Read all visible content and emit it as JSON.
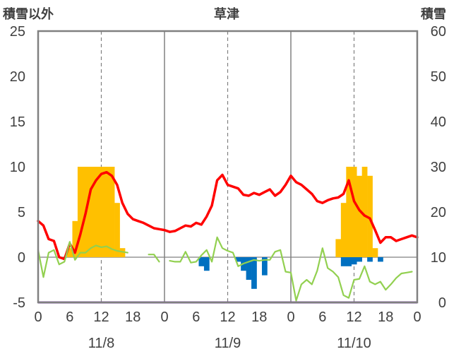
{
  "chart_data": {
    "type": "bar+line",
    "title": "草津",
    "left_axis_label": "積雪以外",
    "right_axis_label": "積雪",
    "left_ylim": [
      -5,
      25
    ],
    "left_ticks": [
      "-5",
      "0",
      "5",
      "10",
      "15",
      "20",
      "25"
    ],
    "right_ylim": [
      0,
      60
    ],
    "right_ticks": [
      "0",
      "10",
      "20",
      "30",
      "40",
      "50",
      "60"
    ],
    "x_range_hours": [
      0,
      72
    ],
    "x_tick_labels": [
      "0",
      "6",
      "12",
      "18",
      "0",
      "6",
      "12",
      "18",
      "0",
      "6",
      "12",
      "18",
      "0"
    ],
    "day_labels": [
      "11/8",
      "11/9",
      "11/10"
    ],
    "grid": "vertical dashed at 12h, solid at day boundaries",
    "colors": {
      "snowfall": "#FFC000",
      "precip": "#0070C0",
      "temperature": "#FF0000",
      "wind": "#92D050",
      "baseline": "#7030A0",
      "frame": "#808080"
    },
    "series": [
      {
        "kind": "bar",
        "axis": "left",
        "color_key": "snowfall",
        "values": [
          [
            6,
            1.0
          ],
          [
            7,
            4.0
          ],
          [
            8,
            10.0
          ],
          [
            9,
            10.0
          ],
          [
            10,
            10.0
          ],
          [
            11,
            10.0
          ],
          [
            12,
            10.0
          ],
          [
            13,
            10.0
          ],
          [
            14,
            10.0
          ],
          [
            15,
            6.0
          ],
          [
            16,
            1.0
          ],
          [
            57,
            2.0
          ],
          [
            58,
            6.0
          ],
          [
            59,
            10.0
          ],
          [
            60,
            10.0
          ],
          [
            61,
            9.0
          ],
          [
            62,
            10.0
          ],
          [
            63,
            9.0
          ],
          [
            64,
            1.0
          ]
        ]
      },
      {
        "kind": "bar",
        "axis": "left",
        "color_key": "precip",
        "values": [
          [
            31,
            -1.0
          ],
          [
            32,
            -1.5
          ],
          [
            38,
            -0.5
          ],
          [
            39,
            -1.5
          ],
          [
            40,
            -2.5
          ],
          [
            41,
            -3.5
          ],
          [
            43,
            -2.0
          ],
          [
            58,
            -1.0
          ],
          [
            59,
            -1.0
          ],
          [
            60,
            -0.8
          ],
          [
            61,
            -0.5
          ],
          [
            63,
            -0.5
          ],
          [
            65,
            -0.5
          ]
        ]
      },
      {
        "kind": "line",
        "axis": "left",
        "color_key": "temperature",
        "segments": [
          [
            [
              0,
              4.0
            ],
            [
              1,
              3.5
            ],
            [
              2,
              2.0
            ],
            [
              3,
              1.8
            ],
            [
              4,
              0.0
            ],
            [
              5,
              -0.2
            ],
            [
              6,
              1.5
            ],
            [
              7,
              0.5
            ],
            [
              8,
              2.5
            ],
            [
              9,
              4.8
            ],
            [
              10,
              7.5
            ],
            [
              11,
              8.5
            ],
            [
              12,
              9.2
            ],
            [
              13,
              9.4
            ],
            [
              14,
              9.0
            ],
            [
              15,
              8.0
            ],
            [
              16,
              6.0
            ],
            [
              17,
              4.8
            ],
            [
              18,
              4.2
            ],
            [
              19,
              4.0
            ],
            [
              20,
              3.8
            ],
            [
              21,
              3.5
            ],
            [
              22,
              3.2
            ],
            [
              23,
              3.1
            ],
            [
              24,
              3.0
            ],
            [
              25,
              2.8
            ],
            [
              26,
              2.9
            ],
            [
              27,
              3.2
            ],
            [
              28,
              3.5
            ],
            [
              29,
              3.4
            ],
            [
              30,
              3.8
            ],
            [
              31,
              3.6
            ],
            [
              32,
              4.5
            ],
            [
              33,
              5.7
            ],
            [
              34,
              8.5
            ],
            [
              35,
              9.1
            ],
            [
              36,
              8.0
            ],
            [
              37,
              7.8
            ],
            [
              38,
              7.6
            ],
            [
              39,
              6.9
            ],
            [
              40,
              6.8
            ],
            [
              41,
              7.1
            ],
            [
              42,
              6.9
            ],
            [
              43,
              7.2
            ],
            [
              44,
              7.5
            ],
            [
              45,
              6.8
            ],
            [
              46,
              7.2
            ],
            [
              47,
              8.0
            ],
            [
              48,
              9.0
            ],
            [
              49,
              8.3
            ],
            [
              50,
              8.0
            ],
            [
              51,
              7.5
            ],
            [
              52,
              7.0
            ],
            [
              53,
              6.2
            ],
            [
              54,
              6.0
            ],
            [
              55,
              6.3
            ],
            [
              56,
              6.5
            ],
            [
              57,
              6.6
            ],
            [
              58,
              7.0
            ],
            [
              59,
              8.5
            ],
            [
              60,
              6.2
            ],
            [
              61,
              5.2
            ],
            [
              62,
              4.6
            ],
            [
              63,
              4.3
            ],
            [
              64,
              3.0
            ],
            [
              65,
              1.6
            ],
            [
              66,
              2.2
            ],
            [
              67,
              2.2
            ],
            [
              68,
              1.8
            ],
            [
              69,
              2.0
            ],
            [
              70,
              2.2
            ],
            [
              71,
              2.4
            ],
            [
              72,
              2.2
            ]
          ]
        ]
      },
      {
        "kind": "line",
        "axis": "left",
        "color_key": "wind",
        "segments": [
          [
            [
              0,
              0.8
            ],
            [
              1,
              -2.2
            ],
            [
              2,
              0.5
            ],
            [
              3,
              0.8
            ],
            [
              4,
              -0.8
            ],
            [
              5,
              -0.5
            ],
            [
              6,
              1.7
            ],
            [
              7,
              -0.3
            ],
            [
              8,
              0.5
            ],
            [
              9,
              0.5
            ],
            [
              10,
              1.0
            ],
            [
              11,
              1.3
            ],
            [
              12,
              1.1
            ],
            [
              13,
              1.2
            ],
            [
              14,
              0.9
            ],
            [
              15,
              0.7
            ],
            [
              16,
              0.6
            ],
            [
              17,
              0.5
            ]
          ],
          [
            [
              21,
              0.3
            ],
            [
              22,
              0.3
            ],
            [
              23,
              -0.5
            ]
          ],
          [
            [
              25,
              -0.4
            ],
            [
              26,
              -0.5
            ],
            [
              27,
              -0.5
            ],
            [
              28,
              0.6
            ],
            [
              29,
              -0.6
            ],
            [
              30,
              -0.5
            ],
            [
              31,
              0.2
            ],
            [
              32,
              0.8
            ],
            [
              33,
              -0.5
            ],
            [
              34,
              2.2
            ],
            [
              35,
              1.0
            ],
            [
              36,
              0.7
            ],
            [
              37,
              0.5
            ],
            [
              38,
              -1.0
            ],
            [
              39,
              -0.7
            ],
            [
              40,
              -0.5
            ],
            [
              41,
              -0.3
            ],
            [
              42,
              -0.4
            ],
            [
              43,
              -0.3
            ],
            [
              44,
              -0.3
            ],
            [
              45,
              0.6
            ],
            [
              46,
              0.8
            ],
            [
              47,
              -1.6
            ],
            [
              48,
              -1.7
            ],
            [
              49,
              -4.8
            ],
            [
              50,
              -3.0
            ],
            [
              51,
              -2.5
            ],
            [
              52,
              -3.0
            ],
            [
              53,
              -1.5
            ],
            [
              54,
              1.0
            ],
            [
              55,
              -1.2
            ],
            [
              56,
              -1.6
            ],
            [
              57,
              -2.2
            ],
            [
              58,
              -4.2
            ],
            [
              59,
              -4.5
            ],
            [
              60,
              -2.5
            ],
            [
              61,
              -2.4
            ],
            [
              62,
              -1.0
            ],
            [
              63,
              -2.7
            ],
            [
              64,
              -3.0
            ],
            [
              65,
              -2.7
            ],
            [
              66,
              -3.6
            ],
            [
              67,
              -3.0
            ],
            [
              68,
              -2.3
            ],
            [
              69,
              -1.8
            ],
            [
              70,
              -1.7
            ],
            [
              71,
              -1.6
            ]
          ]
        ]
      },
      {
        "kind": "hline",
        "axis": "left",
        "color_key": "baseline",
        "value": -5
      }
    ]
  }
}
